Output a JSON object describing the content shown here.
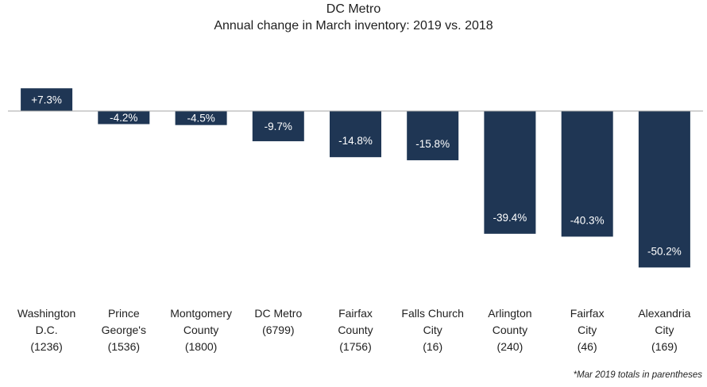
{
  "chart_data": {
    "type": "bar",
    "title": "DC Metro",
    "subtitle": "Annual change in March inventory: 2019 vs. 2018",
    "categories": [
      "Washington D.C. (1236)",
      "Prince George's (1536)",
      "Montgomery County (1800)",
      "DC Metro (6799)",
      "Fairfax County (1756)",
      "Falls Church City (16)",
      "Arlington County (240)",
      "Fairfax City (46)",
      "Alexandria City (169)"
    ],
    "category_lines": [
      [
        "Washington",
        "D.C.",
        "(1236)"
      ],
      [
        "Prince",
        "George's",
        "(1536)"
      ],
      [
        "Montgomery",
        "County",
        "(1800)"
      ],
      [
        "DC Metro",
        "(6799)"
      ],
      [
        "Fairfax",
        "County",
        "(1756)"
      ],
      [
        "Falls Church",
        "City",
        "(16)"
      ],
      [
        "Arlington",
        "County",
        "(240)"
      ],
      [
        "Fairfax",
        "City",
        "(46)"
      ],
      [
        "Alexandria",
        "City",
        "(169)"
      ]
    ],
    "values": [
      7.3,
      -4.2,
      -4.5,
      -9.7,
      -14.8,
      -15.8,
      -39.4,
      -40.3,
      -50.2
    ],
    "data_labels": [
      "+7.3%",
      "-4.2%",
      "-4.5%",
      "-9.7%",
      "-14.8%",
      "-15.8%",
      "-39.4%",
      "-40.3%",
      "-50.2%"
    ],
    "ylim": [
      -55,
      10
    ],
    "xlabel": "",
    "ylabel": "",
    "grid": false,
    "legend": "none",
    "note": "*Mar 2019 totals in parentheses",
    "colors": {
      "bar": "#1f3654",
      "label_text": "#ffffff",
      "axis": "#a6a6a6"
    }
  }
}
